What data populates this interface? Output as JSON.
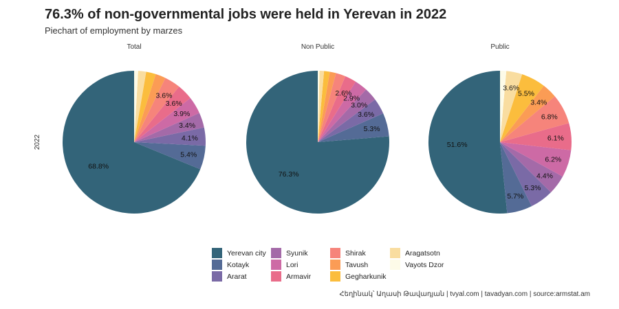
{
  "title": "76.3% of non-governmental jobs were held in Yerevan in 2022",
  "subtitle": "Piechart of employment by marzes",
  "caption": "Հեղինակ՝ Աղասի Թավադյան   |   tvyal.com   |   tavadyan.com   |   source:armstat.am",
  "colors": {
    "Yerevan city": "#336479",
    "Kotayk": "#546b96",
    "Ararat": "#7a6aa6",
    "Syunik": "#a46aa8",
    "Lori": "#cd6aa5",
    "Armavir": "#e96c8a",
    "Shirak": "#f6847b",
    "Tavush": "#fb9c55",
    "Gegharkunik": "#fbbd3d",
    "Aragatsotn": "#f9dda0",
    "Vayots Dzor": "#fdfbe8"
  },
  "chart_data": {
    "type": "pie",
    "row_label": "2022",
    "categories": [
      "Yerevan city",
      "Kotayk",
      "Ararat",
      "Syunik",
      "Lori",
      "Armavir",
      "Shirak",
      "Tavush",
      "Gegharkunik",
      "Aragatsotn",
      "Vayots Dzor"
    ],
    "facets": [
      {
        "name": "Total",
        "values": [
          68.8,
          5.4,
          4.1,
          3.4,
          3.9,
          3.6,
          3.6,
          2.3,
          2.2,
          1.8,
          0.9
        ],
        "labels": [
          "68.8%",
          "5.4%",
          "4.1%",
          "3.4%",
          "3.9%",
          "3.6%",
          "3.6%",
          "",
          "",
          "",
          ""
        ]
      },
      {
        "name": "Non Public",
        "values": [
          76.3,
          5.3,
          3.6,
          3.0,
          2.9,
          2.6,
          2.2,
          1.4,
          1.3,
          1.0,
          0.4
        ],
        "labels": [
          "76.3%",
          "5.3%",
          "3.6%",
          "3.0%",
          "2.9%",
          "2.6%",
          "",
          "",
          "",
          "",
          ""
        ]
      },
      {
        "name": "Public",
        "values": [
          51.6,
          5.7,
          5.3,
          4.4,
          6.2,
          6.1,
          6.8,
          3.4,
          5.5,
          3.6,
          1.4
        ],
        "labels": [
          "51.6%",
          "5.7%",
          "5.3%",
          "4.4%",
          "6.2%",
          "6.1%",
          "6.8%",
          "3.4%",
          "5.5%",
          "3.6%",
          ""
        ]
      }
    ]
  },
  "legend": [
    "Yerevan city",
    "Kotayk",
    "Ararat",
    "Syunik",
    "Lori",
    "Armavir",
    "Shirak",
    "Tavush",
    "Gegharkunik",
    "Aragatsotn",
    "Vayots Dzor"
  ]
}
